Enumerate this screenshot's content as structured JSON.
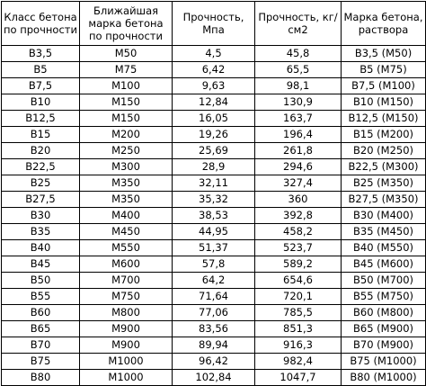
{
  "table": {
    "headers": [
      "Класс бетона по прочности",
      "Ближайшая марка бетона по прочности",
      "Прочность, Мпа",
      "Прочность, кг/см2",
      "Марка бетона, раствора"
    ],
    "rows": [
      [
        "B3,5",
        "M50",
        "4,5",
        "45,8",
        "B3,5 (M50)"
      ],
      [
        "B5",
        "M75",
        "6,42",
        "65,5",
        "B5 (M75)"
      ],
      [
        "B7,5",
        "M100",
        "9,63",
        "98,1",
        "B7,5 (M100)"
      ],
      [
        "B10",
        "M150",
        "12,84",
        "130,9",
        "B10 (M150)"
      ],
      [
        "B12,5",
        "M150",
        "16,05",
        "163,7",
        "B12,5 (M150)"
      ],
      [
        "B15",
        "M200",
        "19,26",
        "196,4",
        "B15 (M200)"
      ],
      [
        "B20",
        "M250",
        "25,69",
        "261,8",
        "B20 (M250)"
      ],
      [
        "B22,5",
        "M300",
        "28,9",
        "294,6",
        "B22,5 (M300)"
      ],
      [
        "B25",
        "M350",
        "32,11",
        "327,4",
        "B25 (M350)"
      ],
      [
        "B27,5",
        "M350",
        "35,32",
        "360",
        "B27,5 (M350)"
      ],
      [
        "B30",
        "M400",
        "38,53",
        "392,8",
        "B30 (M400)"
      ],
      [
        "B35",
        "M450",
        "44,95",
        "458,2",
        "B35 (M450)"
      ],
      [
        "B40",
        "M550",
        "51,37",
        "523,7",
        "B40 (M550)"
      ],
      [
        "B45",
        "M600",
        "57,8",
        "589,2",
        "B45 (M600)"
      ],
      [
        "B50",
        "M700",
        "64,2",
        "654,6",
        "B50 (M700)"
      ],
      [
        "B55",
        "M750",
        "71,64",
        "720,1",
        "B55 (M750)"
      ],
      [
        "B60",
        "M800",
        "77,06",
        "785,5",
        "B60 (M800)"
      ],
      [
        "B65",
        "M900",
        "83,56",
        "851,3",
        "B65 (M900)"
      ],
      [
        "B70",
        "M900",
        "89,94",
        "916,3",
        "B70 (M900)"
      ],
      [
        "B75",
        "M1000",
        "96,42",
        "982,4",
        "B75 (M1000)"
      ],
      [
        "B80",
        "M1000",
        "102,84",
        "1047,7",
        "B80 (M1000)"
      ]
    ]
  }
}
